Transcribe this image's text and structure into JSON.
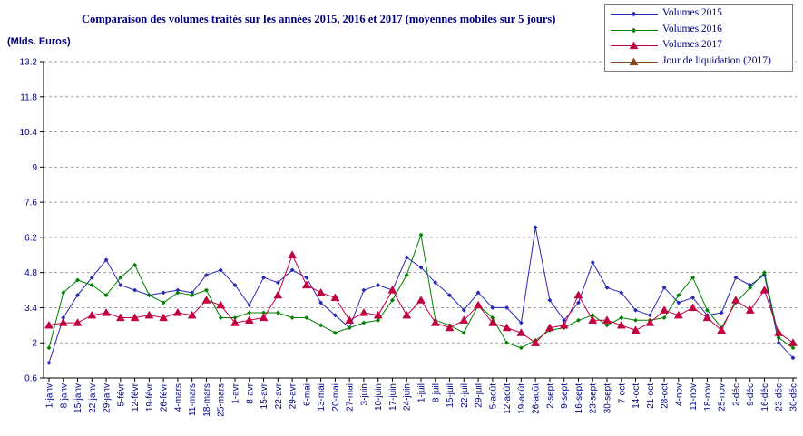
{
  "chart_data": {
    "type": "line",
    "title": "Comparaison des volumes traités sur les années 2015, 2016 et 2017 (moyennes mobiles sur 5 jours)",
    "ylabel": "(Mlds. Euros)",
    "ylim": [
      0.6,
      13.2
    ],
    "yticks": [
      0.6,
      2,
      3.4,
      4.8,
      6.2,
      7.6,
      9,
      10.4,
      11.8,
      13.2
    ],
    "x_labels": [
      "1-janv",
      "8-janv",
      "15-janv",
      "22-janv",
      "29-janv",
      "5-févr",
      "12-févr",
      "19-févr",
      "26-févr",
      "4-mars",
      "11-mars",
      "18-mars",
      "25-mars",
      "1-avr",
      "8-avr",
      "15-avr",
      "22-avr",
      "29-avr",
      "6-mai",
      "13-mai",
      "20-mai",
      "27-mai",
      "3-juin",
      "10-juin",
      "17-juin",
      "24-juin",
      "1-juil",
      "8-juil",
      "15-juil",
      "22-juil",
      "29-juil",
      "5-août",
      "12-août",
      "19-août",
      "26-août",
      "2-sept",
      "9-sept",
      "16-sept",
      "23-sept",
      "30-sept",
      "7-oct",
      "14-oct",
      "21-oct",
      "28-oct",
      "4-nov",
      "11-nov",
      "18-nov",
      "25-nov",
      "2-déc",
      "9-déc",
      "16-déc",
      "23-déc",
      "30-déc"
    ],
    "grid": "horizontal dashed",
    "legend": "top-right",
    "series": [
      {
        "name": "Volumes 2015",
        "color": "#2828b4",
        "marker": "diamond",
        "values": [
          1.2,
          3.0,
          3.9,
          4.6,
          5.3,
          4.3,
          4.1,
          3.9,
          4.0,
          4.1,
          4.0,
          4.7,
          4.9,
          4.3,
          3.5,
          4.6,
          4.4,
          4.9,
          4.6,
          3.6,
          3.1,
          2.6,
          4.1,
          4.3,
          4.1,
          5.4,
          5.0,
          4.4,
          3.9,
          3.3,
          4.0,
          3.4,
          3.4,
          2.8,
          6.6,
          3.7,
          2.9,
          3.6,
          5.2,
          4.2,
          4.0,
          3.3,
          3.1,
          4.2,
          3.6,
          3.8,
          3.1,
          3.2,
          4.6,
          4.3,
          4.7,
          2.0,
          1.4
        ]
      },
      {
        "name": "Volumes 2016",
        "color": "#008000",
        "marker": "diamond",
        "values": [
          1.8,
          4.0,
          4.5,
          4.3,
          3.9,
          4.6,
          5.1,
          3.9,
          3.6,
          4.0,
          3.9,
          4.1,
          3.0,
          3.0,
          3.2,
          3.2,
          3.2,
          3.0,
          3.0,
          2.7,
          2.4,
          2.6,
          2.8,
          2.9,
          3.7,
          4.7,
          6.3,
          2.9,
          2.7,
          2.4,
          3.5,
          3.0,
          2.0,
          1.8,
          2.1,
          2.5,
          2.6,
          2.9,
          3.1,
          2.7,
          3.0,
          2.9,
          2.9,
          3.0,
          3.9,
          4.6,
          3.3,
          2.6,
          3.6,
          4.2,
          4.8,
          2.2,
          1.8
        ]
      },
      {
        "name": "Volumes 2017",
        "color": "#c00040",
        "marker": "triangle",
        "values": [
          2.7,
          2.8,
          2.8,
          3.1,
          3.2,
          3.0,
          3.0,
          3.1,
          3.0,
          3.2,
          3.1,
          3.7,
          3.5,
          2.8,
          2.9,
          3.0,
          3.9,
          5.5,
          4.3,
          4.0,
          3.8,
          2.9,
          3.2,
          3.1,
          4.1,
          3.1,
          3.7,
          2.8,
          2.6,
          2.9,
          3.5,
          2.8,
          2.6,
          2.4,
          2.0,
          2.6,
          2.7,
          3.9,
          2.9,
          2.9,
          2.7,
          2.5,
          2.8,
          3.3,
          3.1,
          3.4,
          3.0,
          2.5,
          3.7,
          3.3,
          4.1,
          2.4,
          2.0
        ]
      }
    ],
    "legend_entries": [
      {
        "label": "Volumes 2015",
        "color": "#2828b4",
        "marker": "diamond"
      },
      {
        "label": "Volumes 2016",
        "color": "#008000",
        "marker": "diamond"
      },
      {
        "label": "Volumes 2017",
        "color": "#c00040",
        "marker": "triangle"
      },
      {
        "label": "Jour de liquidation (2017)",
        "color": "#8b4513",
        "marker": "triangle"
      }
    ]
  }
}
